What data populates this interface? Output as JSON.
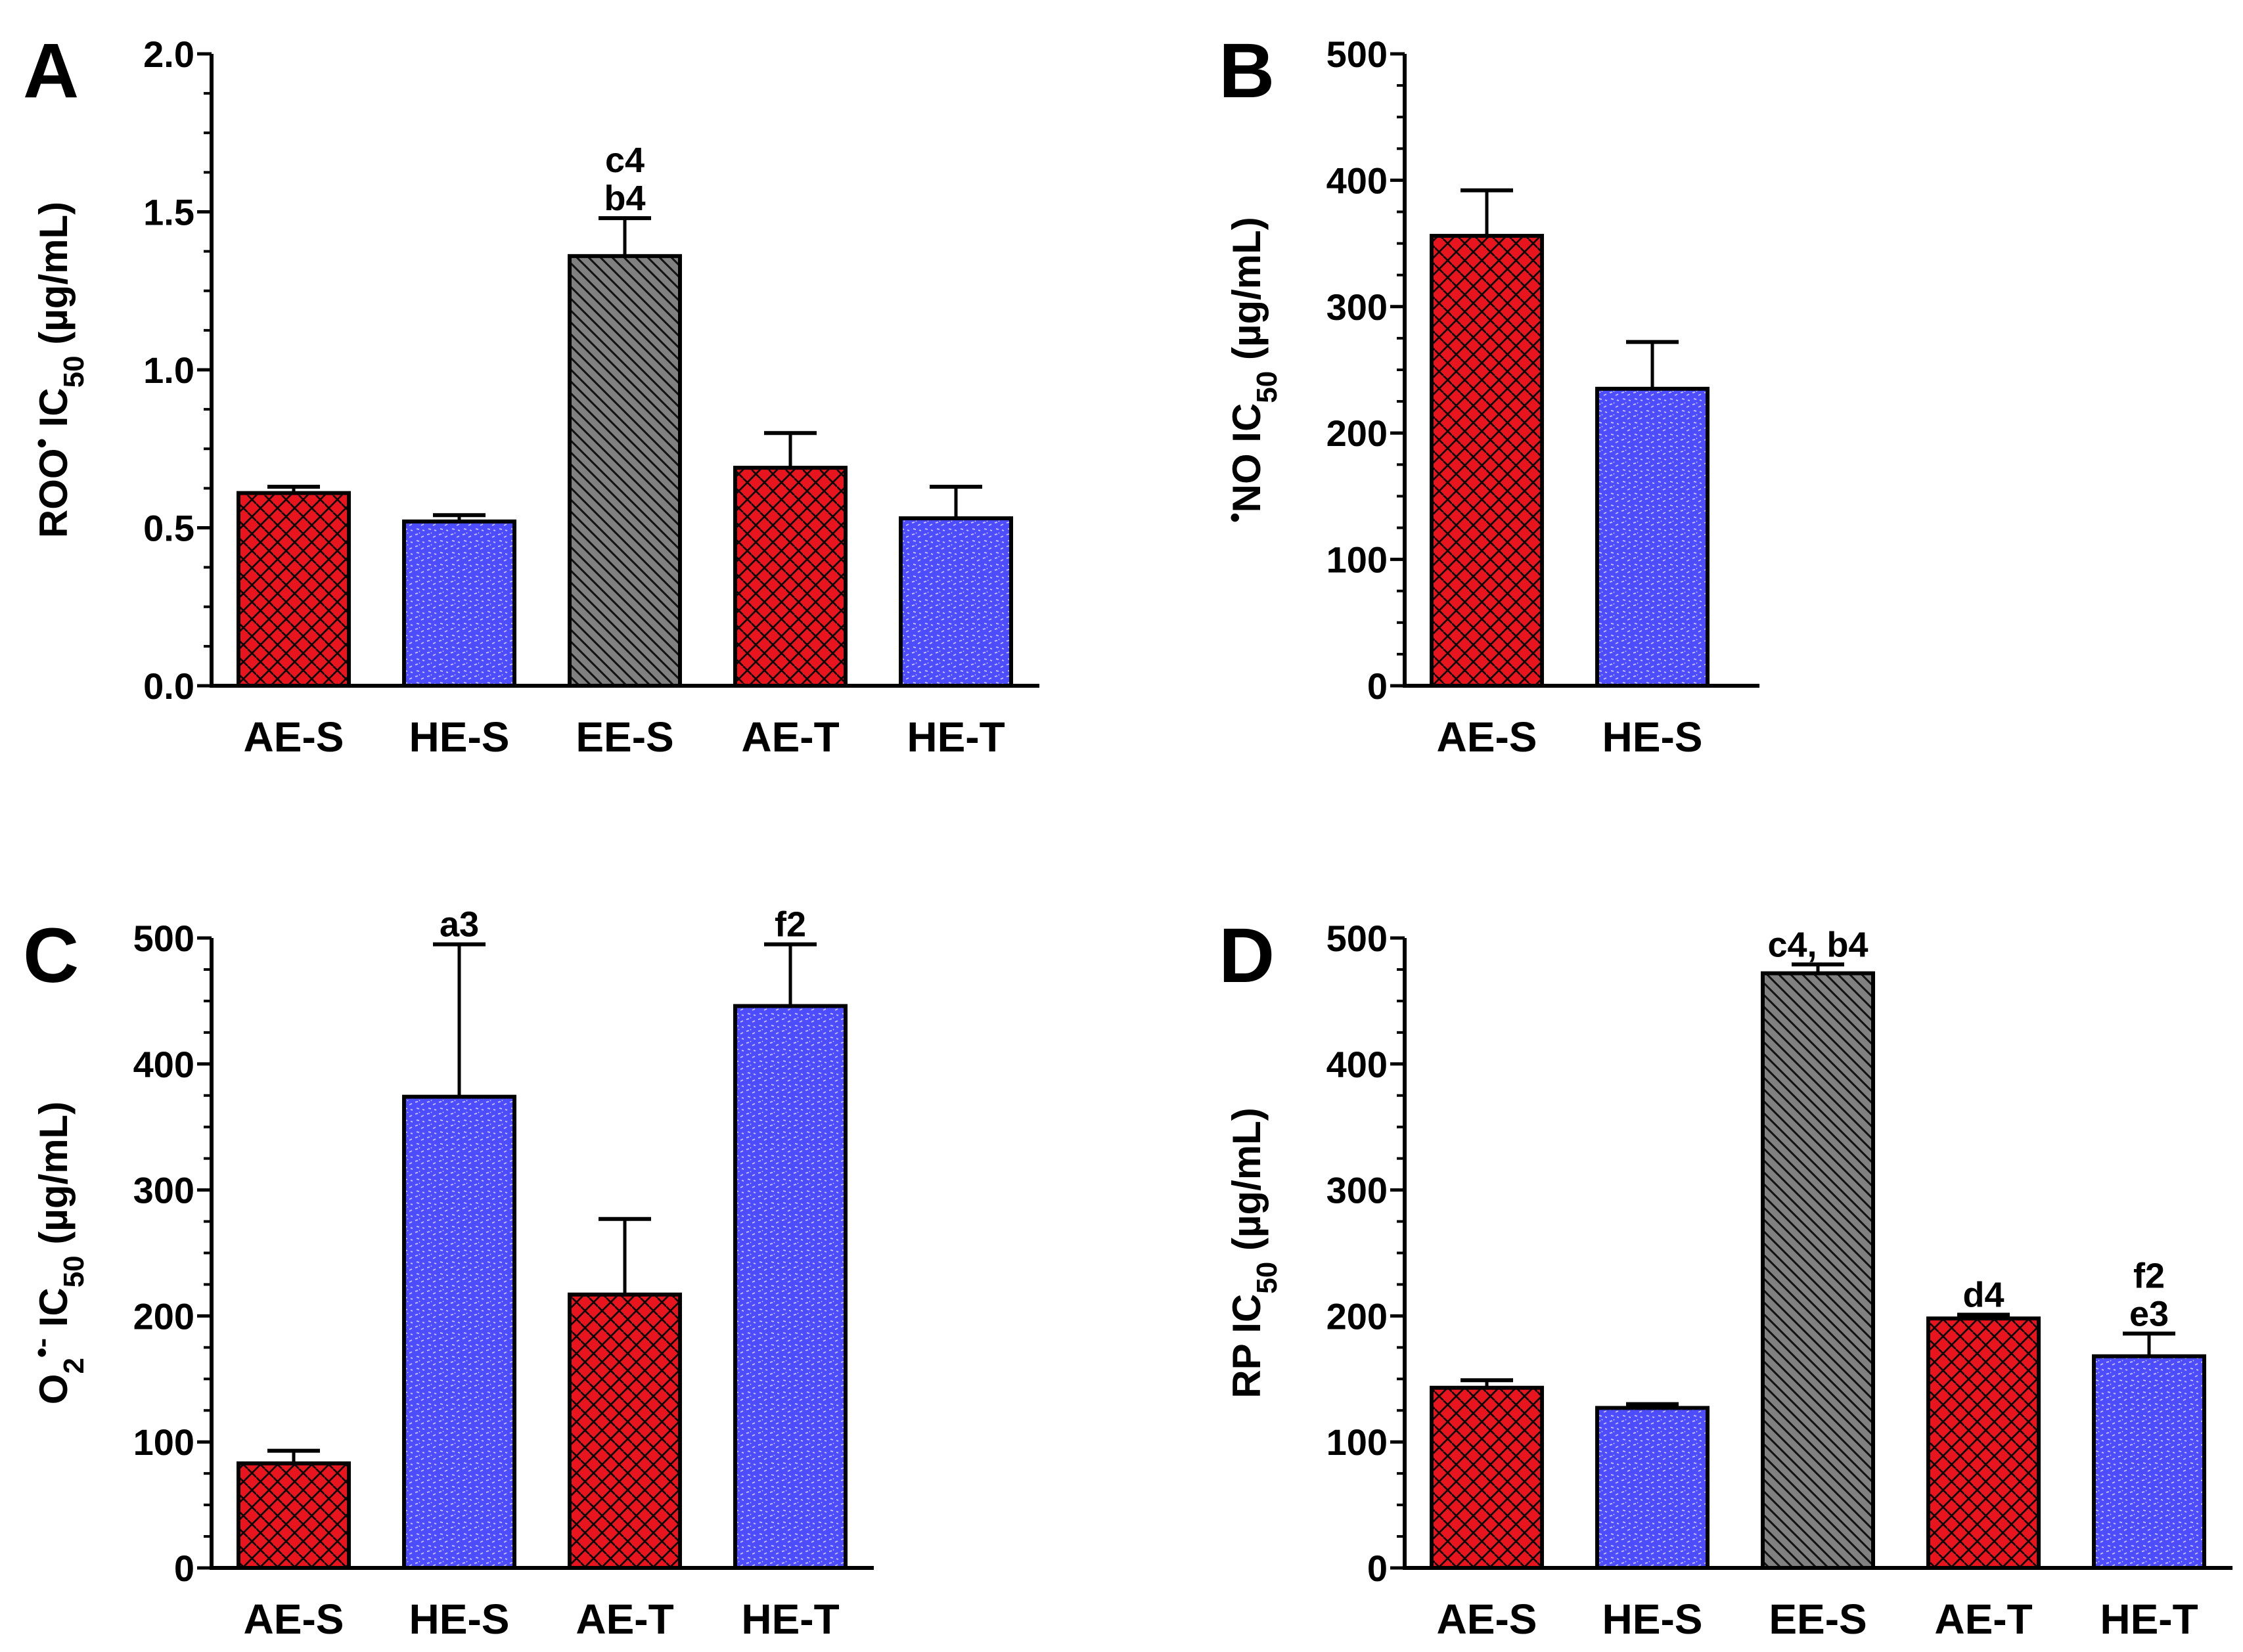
{
  "chart_data": [
    {
      "panel": "A",
      "type": "bar",
      "ylabel": "ROO• IC50 (µg/mL)",
      "ylabel_parts": {
        "pre": "ROO",
        "dot": "•",
        "mid": " IC",
        "sub": "50",
        "post": " (µg/mL)"
      },
      "ylim": [
        0,
        2.0
      ],
      "yticks": [
        0,
        0.5,
        1.0,
        1.5,
        2.0
      ],
      "ytick_labels": [
        "0.0",
        "0.5",
        "1.0",
        "1.5",
        "2.0"
      ],
      "categories": [
        "AE-S",
        "HE-S",
        "EE-S",
        "AE-T",
        "HE-T"
      ],
      "values": [
        0.61,
        0.52,
        1.36,
        0.69,
        0.53
      ],
      "errors": [
        0.02,
        0.02,
        0.12,
        0.11,
        0.1
      ],
      "fills": [
        "red",
        "blue",
        "gray",
        "red",
        "blue"
      ],
      "annotations": [
        null,
        null,
        [
          "c4",
          "b4"
        ],
        null,
        null
      ]
    },
    {
      "panel": "B",
      "type": "bar",
      "ylabel": "•NO IC50 (µg/mL)",
      "ylabel_parts": {
        "pre": "",
        "dot": "•",
        "mid": "NO IC",
        "sub": "50",
        "post": " (µg/mL)"
      },
      "ylim": [
        0,
        500
      ],
      "yticks": [
        0,
        100,
        200,
        300,
        400,
        500
      ],
      "ytick_labels": [
        "0",
        "100",
        "200",
        "300",
        "400",
        "500"
      ],
      "categories": [
        "AE-S",
        "HE-S"
      ],
      "values": [
        356,
        235
      ],
      "errors": [
        36,
        37
      ],
      "fills": [
        "red",
        "blue"
      ],
      "annotations": [
        null,
        null
      ]
    },
    {
      "panel": "C",
      "type": "bar",
      "ylabel": "O2•- IC50 (µg/mL)",
      "ylabel_parts": {
        "pre": "O",
        "presub": "2",
        "dot": "•-",
        "mid": " IC",
        "sub": "50",
        "post": " (µg/mL)"
      },
      "ylim": [
        0,
        500
      ],
      "yticks": [
        0,
        100,
        200,
        300,
        400,
        500
      ],
      "ytick_labels": [
        "0",
        "100",
        "200",
        "300",
        "400",
        "500"
      ],
      "categories": [
        "AE-S",
        "HE-S",
        "AE-T",
        "HE-T"
      ],
      "values": [
        83,
        374,
        217,
        446
      ],
      "errors": [
        10,
        121,
        60,
        49
      ],
      "fills": [
        "red",
        "blue",
        "red",
        "blue"
      ],
      "annotations": [
        null,
        [
          "a3"
        ],
        null,
        [
          "f2"
        ]
      ]
    },
    {
      "panel": "D",
      "type": "bar",
      "ylabel": "RP IC50 (µg/mL)",
      "ylabel_parts": {
        "pre": "",
        "dot": "",
        "mid": "RP IC",
        "sub": "50",
        "post": " (µg/mL)"
      },
      "ylim": [
        0,
        500
      ],
      "yticks": [
        0,
        100,
        200,
        300,
        400,
        500
      ],
      "ytick_labels": [
        "0",
        "100",
        "200",
        "300",
        "400",
        "500"
      ],
      "categories": [
        "AE-S",
        "HE-S",
        "EE-S",
        "AE-T",
        "HE-T"
      ],
      "values": [
        143,
        127,
        472,
        198,
        168
      ],
      "errors": [
        6,
        3,
        7,
        3,
        18
      ],
      "fills": [
        "red",
        "blue",
        "gray",
        "red",
        "blue"
      ],
      "annotations": [
        null,
        null,
        [
          "c4, b4"
        ],
        [
          "d4"
        ],
        [
          "f2",
          "e3"
        ]
      ]
    }
  ]
}
